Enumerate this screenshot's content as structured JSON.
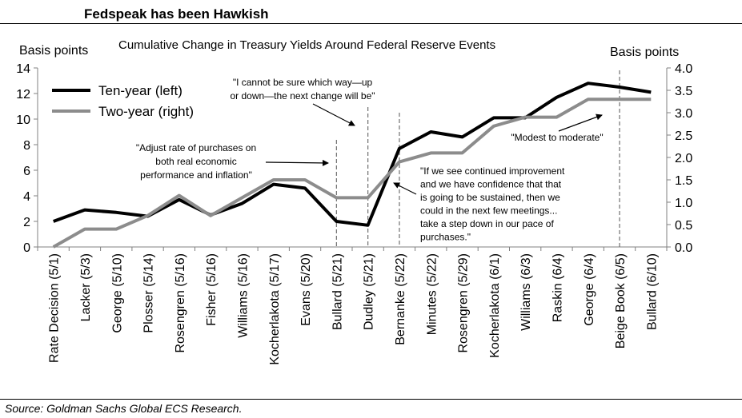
{
  "title": "Fedspeak has been Hawkish",
  "source": "Source: Goldman Sachs Global ECS Research.",
  "colors": {
    "ten_year": "#000000",
    "two_year": "#8c8c8c",
    "event_line": "#707070",
    "axis": "#808080"
  },
  "chart_data": {
    "type": "line",
    "title": "Cumulative Change in Treasury Yields Around Federal Reserve Events",
    "ylabel_left": "Basis points",
    "ylabel_right": "Basis points",
    "ylim_left": [
      0,
      14
    ],
    "ylim_right": [
      0.0,
      4.0
    ],
    "yticks_left": [
      "0",
      "2",
      "4",
      "6",
      "8",
      "10",
      "12",
      "14"
    ],
    "yticks_right": [
      "0.0",
      "0.5",
      "1.0",
      "1.5",
      "2.0",
      "2.5",
      "3.0",
      "3.5",
      "4.0"
    ],
    "categories": [
      "Rate Decision (5/1)",
      "Lacker (5/3)",
      "George (5/10)",
      "Plosser (5/14)",
      "Rosengren (5/16)",
      "Fisher (5/16)",
      "Williams (5/16)",
      "Kocherlakota (5/17)",
      "Evans (5/20)",
      "Bullard (5/21)",
      "Dudley (5/21)",
      "Bernanke (5/22)",
      "Minutes (5/22)",
      "Rosengren (5/29)",
      "Kocherlakota (6/1)",
      "Williams (6/3)",
      "Raskin (6/4)",
      "George (6/4)",
      "Beige Book (6/5)",
      "Bullard (6/10)"
    ],
    "grid": false,
    "legend_position": "top-left",
    "series": [
      {
        "name": "Ten-year (left)",
        "axis": "left",
        "values": [
          2.0,
          2.9,
          2.7,
          2.4,
          3.7,
          2.5,
          3.4,
          4.9,
          4.6,
          2.0,
          1.7,
          7.7,
          9.0,
          8.6,
          10.1,
          10.1,
          11.7,
          12.8,
          12.5,
          12.1
        ]
      },
      {
        "name": "Two-year (right)",
        "axis": "right",
        "values": [
          0.0,
          0.4,
          0.4,
          0.7,
          1.15,
          0.7,
          1.1,
          1.5,
          1.5,
          1.1,
          1.1,
          1.9,
          2.1,
          2.1,
          2.7,
          2.9,
          2.9,
          3.3,
          3.3,
          3.3
        ]
      }
    ],
    "event_markers": [
      {
        "category_index": 9,
        "text": [
          "\"Adjust rate of purchases on",
          "both real economic",
          "performance and inflation\""
        ]
      },
      {
        "category_index": 10,
        "text": [
          "\"I cannot be sure which way—up",
          "or down—the next change will be\""
        ]
      },
      {
        "category_index": 11,
        "text": [
          "\"If we see continued improvement",
          "and we have confidence that that",
          "is going to be sustained, then we",
          "could in the next few meetings...",
          "take a step down in our pace of",
          "purchases.\""
        ]
      },
      {
        "category_index": 18,
        "text": [
          "\"Modest to moderate\""
        ]
      }
    ]
  }
}
